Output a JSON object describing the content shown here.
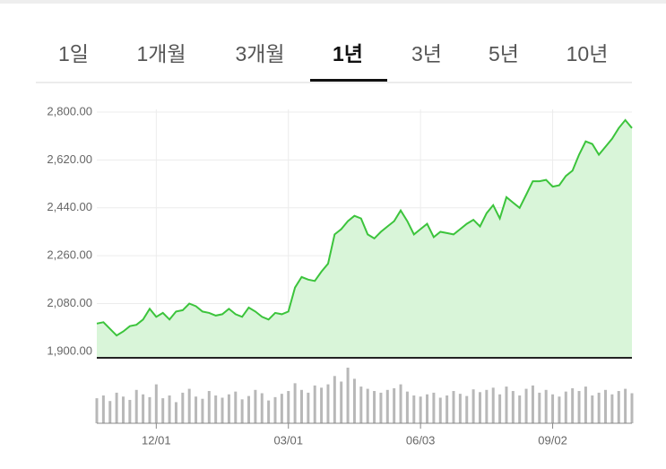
{
  "tabs": [
    "1일",
    "1개월",
    "3개월",
    "1년",
    "3년",
    "5년",
    "10년"
  ],
  "active_tab": 3,
  "chart_data": {
    "type": "line",
    "color": "#3cc43c",
    "area_color": "#d9f5d9",
    "volume_color": "#b8b8b8",
    "categories": [
      null,
      null,
      null,
      null,
      null,
      null,
      null,
      null,
      null,
      "12/01",
      null,
      null,
      null,
      null,
      null,
      null,
      null,
      null,
      null,
      null,
      null,
      null,
      null,
      null,
      null,
      null,
      null,
      null,
      null,
      "03/01",
      null,
      null,
      null,
      null,
      null,
      null,
      null,
      null,
      null,
      null,
      null,
      null,
      null,
      null,
      null,
      null,
      null,
      null,
      null,
      "06/03",
      null,
      null,
      null,
      null,
      null,
      null,
      null,
      null,
      null,
      null,
      null,
      null,
      null,
      null,
      null,
      null,
      null,
      null,
      null,
      "09/02",
      null,
      null,
      null,
      null,
      null,
      null,
      null,
      null,
      null,
      null,
      null,
      null
    ],
    "values": [
      2005,
      2010,
      1985,
      1960,
      1975,
      1995,
      2000,
      2020,
      2060,
      2030,
      2045,
      2020,
      2050,
      2055,
      2080,
      2070,
      2050,
      2045,
      2035,
      2040,
      2060,
      2040,
      2030,
      2065,
      2050,
      2030,
      2020,
      2045,
      2040,
      2050,
      2140,
      2180,
      2170,
      2165,
      2200,
      2230,
      2340,
      2360,
      2390,
      2410,
      2400,
      2340,
      2325,
      2350,
      2370,
      2390,
      2430,
      2390,
      2340,
      2360,
      2380,
      2330,
      2350,
      2345,
      2340,
      2360,
      2380,
      2395,
      2370,
      2420,
      2450,
      2400,
      2480,
      2460,
      2440,
      2490,
      2540,
      2540,
      2545,
      2520,
      2525,
      2560,
      2580,
      2640,
      2690,
      2680,
      2640,
      2670,
      2700,
      2740,
      2770,
      2740
    ],
    "volume": [
      45,
      50,
      40,
      55,
      48,
      42,
      60,
      52,
      47,
      70,
      45,
      50,
      38,
      55,
      62,
      48,
      44,
      58,
      50,
      46,
      52,
      57,
      43,
      49,
      60,
      54,
      41,
      47,
      53,
      58,
      72,
      60,
      55,
      68,
      64,
      70,
      85,
      75,
      100,
      80,
      66,
      62,
      58,
      55,
      60,
      63,
      70,
      57,
      50,
      48,
      52,
      55,
      46,
      50,
      58,
      53,
      49,
      61,
      56,
      60,
      64,
      52,
      66,
      58,
      50,
      62,
      68,
      55,
      60,
      52,
      48,
      57,
      63,
      58,
      66,
      50,
      55,
      60,
      52,
      58,
      62,
      54
    ],
    "volume_ylim": [
      0,
      100
    ],
    "ylim": [
      1876,
      2844
    ],
    "yticks": [
      {
        "value": 1900,
        "label": "1,900.00"
      },
      {
        "value": 2080,
        "label": "2,080.00"
      },
      {
        "value": 2260,
        "label": "2,260.00"
      },
      {
        "value": 2440,
        "label": "2,440.00"
      },
      {
        "value": 2620,
        "label": "2,620.00"
      },
      {
        "value": 2800,
        "label": "2,800.00"
      }
    ],
    "grid": true
  }
}
